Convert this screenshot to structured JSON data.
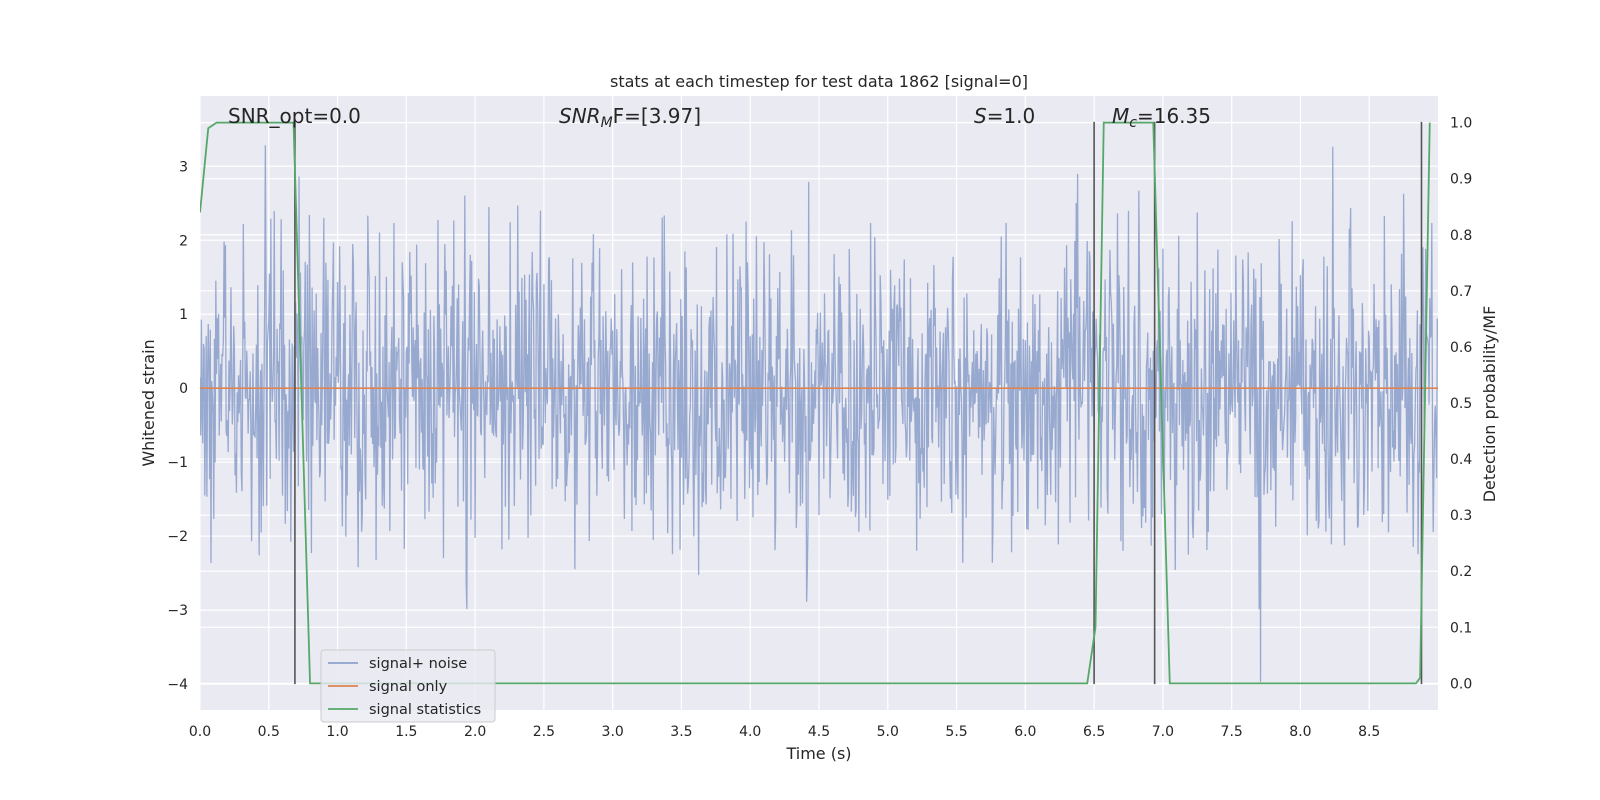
{
  "chart_data": {
    "type": "line",
    "title": "stats at each timestep for test data 1862 [signal=0]",
    "xlabel": "Time (s)",
    "ylabel": "Whitened strain",
    "y2label": "Detection probability/MF",
    "xlim": [
      0,
      9.0
    ],
    "ylim": [
      -4.35,
      3.95
    ],
    "y2lim": [
      -0.0475,
      1.0475
    ],
    "x_ticks": [
      "0.0",
      "0.5",
      "1.0",
      "1.5",
      "2.0",
      "2.5",
      "3.0",
      "3.5",
      "4.0",
      "4.5",
      "5.0",
      "5.5",
      "6.0",
      "6.5",
      "7.0",
      "7.5",
      "8.0",
      "8.5"
    ],
    "y_ticks": [
      "−4",
      "−3",
      "−2",
      "−1",
      "0",
      "1",
      "2",
      "3"
    ],
    "y2_ticks": [
      "0.0",
      "0.1",
      "0.2",
      "0.3",
      "0.4",
      "0.5",
      "0.6",
      "0.7",
      "0.8",
      "0.9",
      "1.0"
    ],
    "grid": true,
    "legend_position": "lower-left",
    "annotations": {
      "snr_opt": "SNR_opt=0.0",
      "snr_mf_sym": "SNR",
      "snr_mf_sub": "M",
      "snr_mf_rest": "F=[3.97]",
      "s_sym": "S",
      "s_rest": "=1.0",
      "mc_sym": "M",
      "mc_sub": "c",
      "mc_rest": "=16.35"
    },
    "series": [
      {
        "name": "signal+ noise",
        "color": "#8fa2cc",
        "style": "noise band",
        "y_range": [
          -4.0,
          3.5
        ],
        "sample_interval": 0.005
      },
      {
        "name": "signal only",
        "color": "#dd8452",
        "x": [
          0.0,
          9.0
        ],
        "y": [
          0.0,
          0.0
        ]
      },
      {
        "name": "signal statistics",
        "color": "#55a868",
        "axis": "right",
        "x": [
          0.0,
          0.06,
          0.12,
          0.68,
          0.8,
          6.45,
          6.51,
          6.57,
          6.93,
          7.05,
          8.84,
          8.87,
          8.94
        ],
        "y": [
          0.84,
          0.99,
          1.0,
          1.0,
          0.0,
          0.0,
          0.1,
          1.0,
          1.0,
          0.0,
          0.0,
          0.01,
          1.0
        ]
      }
    ],
    "vertical_markers": {
      "x": [
        0.69,
        6.5,
        6.94,
        8.88
      ],
      "y_range": [
        -4.0,
        3.6
      ],
      "color": "#555555"
    }
  },
  "colors": {
    "axes_bg": "#eaeaf2",
    "grid": "#ffffff",
    "text": "#262626"
  }
}
